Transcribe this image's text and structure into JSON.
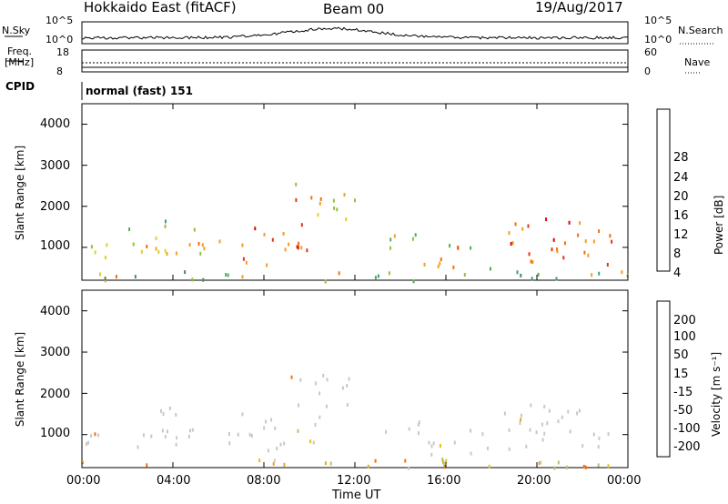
{
  "header": {
    "station": "Hokkaido East (fitACF)",
    "beam": "Beam 00",
    "date": "19/Aug/2017"
  },
  "top_panel": {
    "nsky_label": "N.Sky",
    "nsky_ticks": [
      "10^5",
      "10^0"
    ],
    "nsearch_label": "N.Search",
    "right_ticks": [
      "10^5",
      "10^0"
    ]
  },
  "freq_panel": {
    "label_line1": "Freq.",
    "label_line2": "[MHz]",
    "left_ticks": [
      "18",
      "8"
    ],
    "right_ticks": [
      "60",
      "0"
    ],
    "nave_label": "Nave",
    "cpid_label": "CPID",
    "cpid_value": "normal (fast) 151"
  },
  "colors": {
    "power": [
      "#1010e0",
      "#3a5ab0",
      "#4a8a5a",
      "#3aa07a",
      "#50b050",
      "#90c040",
      "#e0d020",
      "#f0a020",
      "#f07010",
      "#e83010",
      "#e00000"
    ],
    "velocity": [
      "#2030c0",
      "#3a70a0",
      "#3a9060",
      "#50b050",
      "#a0d060",
      "#c8c8c8",
      "#e0c020",
      "#f0a020",
      "#f07010",
      "#e83010",
      "#e00000"
    ]
  },
  "chart_data": [
    {
      "type": "heatmap",
      "title": "",
      "xlabel": "",
      "ylabel": "Slant Range [km]",
      "y_ticks": [
        "1000",
        "2000",
        "3000",
        "4000"
      ],
      "ylim": [
        200,
        4500
      ],
      "x_ticks": [
        "00:00",
        "04:00",
        "08:00",
        "12:00",
        "16:00",
        "20:00",
        "00:00"
      ],
      "colorbar_label": "Power [dB]",
      "colorbar_ticks": [
        "4",
        "8",
        "12",
        "16",
        "20",
        "24",
        "28"
      ]
    },
    {
      "type": "heatmap",
      "title": "",
      "xlabel": "Time UT",
      "ylabel": "Slant Range [km]",
      "y_ticks": [
        "1000",
        "2000",
        "3000",
        "4000"
      ],
      "ylim": [
        200,
        4500
      ],
      "x_ticks": [
        "00:00",
        "04:00",
        "08:00",
        "12:00",
        "16:00",
        "20:00",
        "00:00"
      ],
      "colorbar_label": "Velocity [m s⁻¹]",
      "colorbar_ticks": [
        "200",
        "100",
        "50",
        "15",
        "-15",
        "-50",
        "-100",
        "-200"
      ]
    }
  ]
}
